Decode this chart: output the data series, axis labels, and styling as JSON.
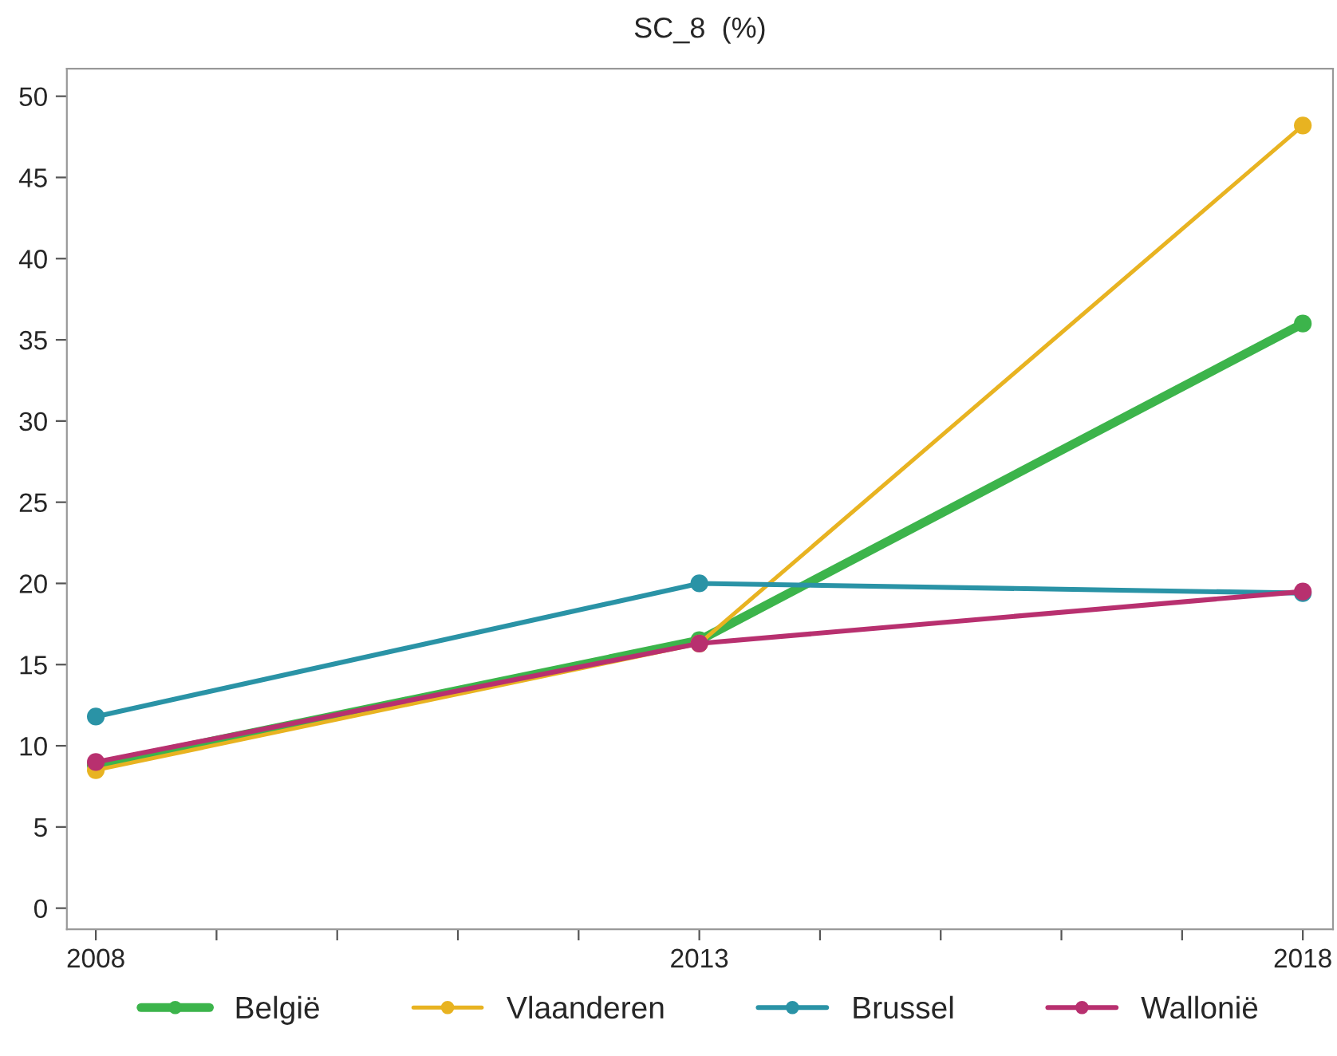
{
  "chart_data": {
    "type": "line",
    "title": "SC_8  (%)",
    "x": [
      2008,
      2013,
      2018
    ],
    "series": [
      {
        "name": "België",
        "color": "#3cb44b",
        "values": [
          8.8,
          16.5,
          36.0
        ]
      },
      {
        "name": "Vlaanderen",
        "color": "#e8b321",
        "values": [
          8.5,
          16.3,
          48.2
        ]
      },
      {
        "name": "Brussel",
        "color": "#2a93a6",
        "values": [
          11.8,
          20.0,
          19.4
        ]
      },
      {
        "name": "Wallonië",
        "color": "#b8306f",
        "values": [
          9.0,
          16.3,
          19.5
        ]
      }
    ],
    "xlim": [
      2007.76,
      2018.25
    ],
    "ylim": [
      -1.3,
      51.7
    ],
    "xticks": [
      2008,
      {
        "value": 2009,
        "label": null
      },
      {
        "value": 2010,
        "label": null
      },
      {
        "value": 2011,
        "label": null
      },
      {
        "value": 2012,
        "label": null
      },
      2013,
      {
        "value": 2014,
        "label": null
      },
      {
        "value": 2015,
        "label": null
      },
      {
        "value": 2016,
        "label": null
      },
      {
        "value": 2017,
        "label": null
      },
      2018
    ],
    "yticks": [
      0,
      5,
      10,
      15,
      20,
      25,
      30,
      35,
      40,
      45,
      50
    ],
    "grid": false,
    "legend": "bottom",
    "marker": "circle",
    "line_style": "solid"
  }
}
